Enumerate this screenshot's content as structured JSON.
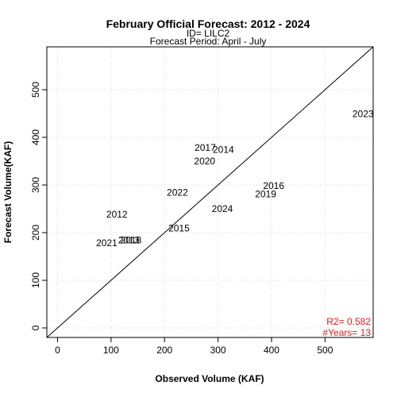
{
  "chart_data": {
    "type": "scatter",
    "title": "February Official Forecast: 2012 - 2024",
    "subtitle_lines": [
      "ID= LILC2",
      "Forecast Period:  April - July"
    ],
    "xlabel": "Observed Volume (KAF)",
    "ylabel": "Forecast Volume(KAF)",
    "xlim": [
      -20,
      590
    ],
    "ylim": [
      -20,
      590
    ],
    "xticks": [
      0,
      100,
      200,
      300,
      400,
      500
    ],
    "yticks": [
      0,
      100,
      200,
      300,
      400,
      500
    ],
    "grid": true,
    "reference_line": "1:1",
    "points": [
      {
        "label": "2012",
        "x": 111,
        "y": 238
      },
      {
        "label": "2013",
        "x": 133,
        "y": 184
      },
      {
        "label": "2014",
        "x": 310,
        "y": 374
      },
      {
        "label": "2015",
        "x": 227,
        "y": 209
      },
      {
        "label": "2016",
        "x": 404,
        "y": 298
      },
      {
        "label": "2017",
        "x": 276,
        "y": 378
      },
      {
        "label": "2018",
        "x": 137,
        "y": 184
      },
      {
        "label": "2019",
        "x": 389,
        "y": 281
      },
      {
        "label": "2020",
        "x": 275,
        "y": 350
      },
      {
        "label": "2021",
        "x": 92,
        "y": 178
      },
      {
        "label": "2022",
        "x": 224,
        "y": 284
      },
      {
        "label": "2023",
        "x": 571,
        "y": 449
      },
      {
        "label": "2024",
        "x": 308,
        "y": 250
      }
    ],
    "stats": {
      "r2_label": "R2=  0.582",
      "years_label": "#Years=  13",
      "color": "#e41a1c"
    }
  }
}
